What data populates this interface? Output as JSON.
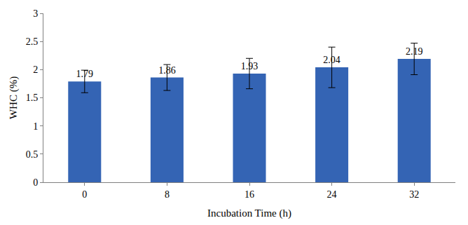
{
  "chart_data": {
    "type": "bar",
    "x_label": "Incubation Time (h)",
    "y_label": "WHC (%)",
    "categories": [
      "0",
      "8",
      "16",
      "24",
      "32"
    ],
    "values": [
      1.79,
      1.86,
      1.93,
      2.04,
      2.19
    ],
    "errors": [
      0.2,
      0.23,
      0.27,
      0.36,
      0.28
    ],
    "color": "#3464b4",
    "ylim": [
      0,
      3
    ],
    "yticks": [
      0,
      0.5,
      1,
      1.5,
      2,
      2.5,
      3
    ],
    "grid": false,
    "data_labels": true
  }
}
